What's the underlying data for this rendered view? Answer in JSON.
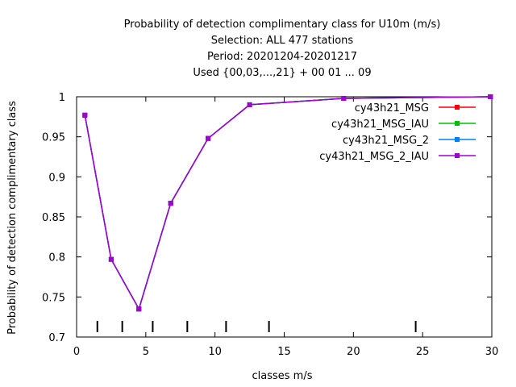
{
  "chart_data": {
    "type": "line",
    "title_lines": [
      "Probability of detection complimentary class  for U10m (m/s)",
      "Selection: ALL    477 stations",
      "Period: 20201204-20201217",
      "Used {00,03,...,21} + 00 01 ... 09"
    ],
    "xlabel": "classes m/s",
    "ylabel": "Probability of detection complimentary class",
    "xlim": [
      0,
      30
    ],
    "ylim": [
      0.7,
      1.0
    ],
    "xticks": [
      0,
      5,
      10,
      15,
      20,
      25,
      30
    ],
    "xtick_labels": [
      "0",
      "5",
      "10",
      "15",
      "20",
      "25",
      "30"
    ],
    "yticks": [
      0.7,
      0.75,
      0.8,
      0.85,
      0.9,
      0.95,
      1.0
    ],
    "ytick_labels": [
      "0.7",
      "0.75",
      "0.8",
      "0.85",
      "0.9",
      "0.95",
      "1"
    ],
    "grid": false,
    "legend_position": "top-right",
    "class_markers": [
      1.5,
      3.3,
      5.5,
      8.0,
      10.8,
      13.9,
      24.5
    ],
    "x": [
      0.6,
      2.5,
      4.5,
      6.8,
      9.5,
      12.5,
      19.3,
      29.9
    ],
    "series": [
      {
        "name": "cy43h21_MSG",
        "color": "#ff0000",
        "values": [
          0.977,
          0.797,
          0.735,
          0.867,
          0.948,
          0.99,
          0.998,
          1.0
        ]
      },
      {
        "name": "cy43h21_MSG_IAU",
        "color": "#00c000",
        "values": [
          0.977,
          0.797,
          0.735,
          0.867,
          0.948,
          0.99,
          0.998,
          1.0
        ]
      },
      {
        "name": "cy43h21_MSG_2",
        "color": "#0080ff",
        "values": [
          0.977,
          0.797,
          0.735,
          0.867,
          0.948,
          0.99,
          0.998,
          1.0
        ]
      },
      {
        "name": "cy43h21_MSG_2_IAU",
        "color": "#a000d0",
        "values": [
          0.977,
          0.797,
          0.735,
          0.867,
          0.948,
          0.99,
          0.998,
          1.0
        ]
      }
    ]
  }
}
